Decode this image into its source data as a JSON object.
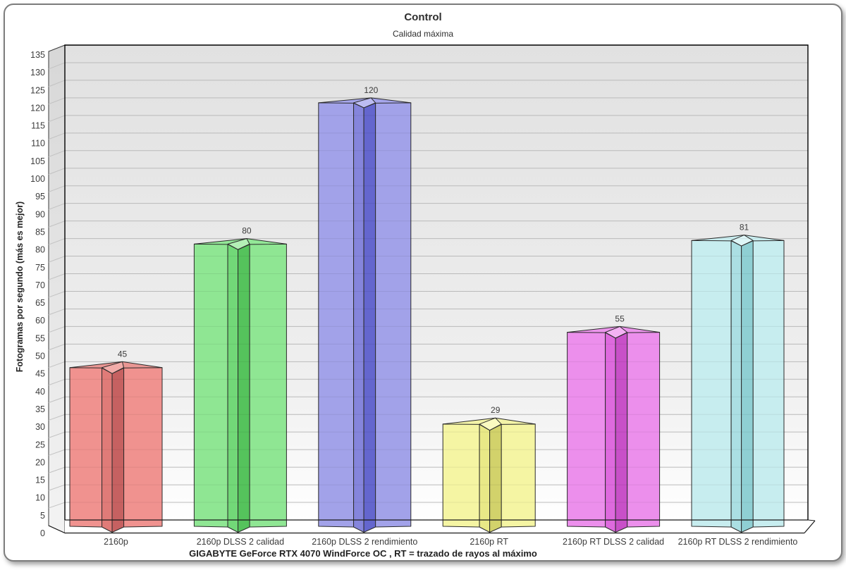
{
  "card": {
    "title": "Control",
    "subtitle": "Calidad máxima"
  },
  "chart_data": {
    "type": "bar",
    "title": "Control",
    "subtitle": "Calidad máxima",
    "ylabel": "Fotogramas por segundo (más es mejor)",
    "footnote": "GIGABYTE GeForce RTX 4070 WindForce OC , RT = trazado de rayos al máximo",
    "categories": [
      "2160p",
      "2160p DLSS 2 calidad",
      "2160p DLSS 2 rendimiento",
      "2160p RT",
      "2160p RT DLSS 2 calidad",
      "2160p RT DLSS 2 rendimiento"
    ],
    "values": [
      45,
      80,
      120,
      29,
      55,
      81
    ],
    "ylim": [
      0,
      135
    ],
    "ytick_step": 5,
    "grid": true,
    "legend_position": "none",
    "bar_style": "3d-star-column",
    "colors": {
      "grid_line": "#c9c9c9",
      "plot_bg_top": "#e1e1e1",
      "plot_bg_bottom": "#ffffff",
      "edge_stroke": "#2b2b2b",
      "text": "#3c3c3c"
    },
    "series_colors": [
      {
        "name": "red",
        "wing": "#F0928F",
        "prism_left": "#E07B78",
        "prism_right": "#C66161",
        "top": "#E99693",
        "kite": "#F2ACA9"
      },
      {
        "name": "green",
        "wing": "#8FE693",
        "prism_left": "#72D878",
        "prism_right": "#55C35C",
        "top": "#93E797",
        "kite": "#B4F0B6"
      },
      {
        "name": "blue",
        "wing": "#A2A2E9",
        "prism_left": "#8585DC",
        "prism_right": "#6466CE",
        "top": "#A6A6EB",
        "kite": "#BCBCF2"
      },
      {
        "name": "yellow",
        "wing": "#F5F5A3",
        "prism_left": "#E9E987",
        "prism_right": "#D2D26B",
        "top": "#F4F4A8",
        "kite": "#FAFAC0"
      },
      {
        "name": "magenta",
        "wing": "#EC8FEC",
        "prism_left": "#DE6ADE",
        "prism_right": "#C850C8",
        "top": "#EC95EC",
        "kite": "#F4B2F4"
      },
      {
        "name": "cyan",
        "wing": "#C7EDEF",
        "prism_left": "#ABDFE3",
        "prism_right": "#8FCFD3",
        "top": "#CBEFF1",
        "kite": "#DEF6F7"
      }
    ]
  }
}
